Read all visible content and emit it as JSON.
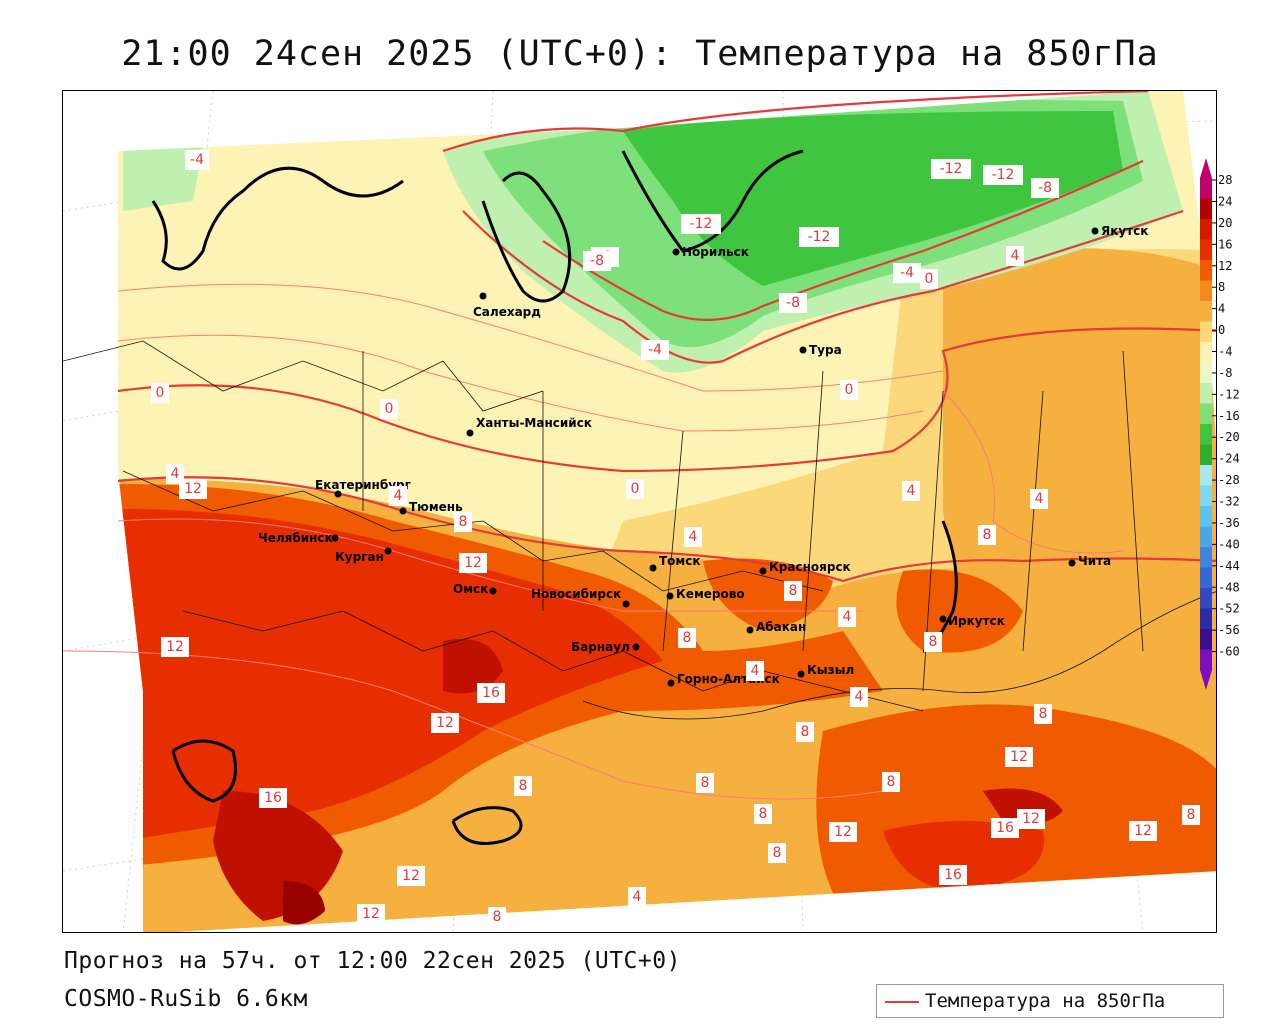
{
  "title": "21:00 24сен 2025 (UTC+0): Температура на 850гПа",
  "footer": {
    "forecast": "Прогноз на 57ч. от 12:00 22сен 2025 (UTC+0)",
    "model": "COSMO-RuSib 6.6км"
  },
  "legend": {
    "label": "Температура на 850гПа",
    "line_color": "#e53a3a"
  },
  "scale": {
    "ticks": [
      "28",
      "24",
      "20",
      "16",
      "12",
      "8",
      "4",
      "0",
      "-4",
      "-8",
      "-12",
      "-16",
      "-20",
      "-24",
      "-28",
      "-32",
      "-36",
      "-40",
      "-44",
      "-48",
      "-52",
      "-56",
      "-60"
    ],
    "colors": [
      "#c0006a",
      "#b20000",
      "#d41a00",
      "#e62e00",
      "#f05a00",
      "#f58a1a",
      "#f6b040",
      "#fbd97a",
      "#fdf3b5",
      "#e8f8c8",
      "#bff0b0",
      "#7ee07a",
      "#3fc53f",
      "#2fae2f",
      "#a6eaf0",
      "#7fd9ee",
      "#5fc2ee",
      "#4aa6e8",
      "#3c86e0",
      "#3468d6",
      "#3048c4",
      "#2b2aa8",
      "#3a1090",
      "#7a10c0"
    ]
  },
  "cities": [
    {
      "name": "Норильск"
    },
    {
      "name": "Якутск"
    },
    {
      "name": "Салехард"
    },
    {
      "name": "Тура"
    },
    {
      "name": "Ханты-Мансийск"
    },
    {
      "name": "Екатеринбург"
    },
    {
      "name": "Тюмень"
    },
    {
      "name": "Челябинск"
    },
    {
      "name": "Курган"
    },
    {
      "name": "Омск"
    },
    {
      "name": "Новосибирск"
    },
    {
      "name": "Томск"
    },
    {
      "name": "Красноярск"
    },
    {
      "name": "Кемерово"
    },
    {
      "name": "Барнаул"
    },
    {
      "name": "Абакан"
    },
    {
      "name": "Кызыл"
    },
    {
      "name": "Горно-Алтайск"
    },
    {
      "name": "Иркутск"
    },
    {
      "name": "Чита"
    }
  ],
  "contour_labels": [
    {
      "text": "-4"
    },
    {
      "text": "-12"
    },
    {
      "text": "-12"
    },
    {
      "text": "-8"
    },
    {
      "text": "-12"
    },
    {
      "text": "-8"
    },
    {
      "text": "-12"
    },
    {
      "text": "-8"
    },
    {
      "text": "-4"
    },
    {
      "text": "0"
    },
    {
      "text": "-8"
    },
    {
      "text": "-4"
    },
    {
      "text": "4"
    },
    {
      "text": "0"
    },
    {
      "text": "0"
    },
    {
      "text": "0"
    },
    {
      "text": "4"
    },
    {
      "text": "8"
    },
    {
      "text": "12"
    },
    {
      "text": "4"
    },
    {
      "text": "0"
    },
    {
      "text": "4"
    },
    {
      "text": "4"
    },
    {
      "text": "8"
    },
    {
      "text": "4"
    },
    {
      "text": "8"
    },
    {
      "text": "12"
    },
    {
      "text": "8"
    },
    {
      "text": "4"
    },
    {
      "text": "8"
    },
    {
      "text": "8"
    },
    {
      "text": "12"
    },
    {
      "text": "16"
    },
    {
      "text": "12"
    },
    {
      "text": "16"
    },
    {
      "text": "8"
    },
    {
      "text": "8"
    },
    {
      "text": "4"
    },
    {
      "text": "4"
    },
    {
      "text": "8"
    },
    {
      "text": "8"
    },
    {
      "text": "12"
    },
    {
      "text": "8"
    },
    {
      "text": "8"
    },
    {
      "text": "12"
    },
    {
      "text": "16"
    },
    {
      "text": "12"
    },
    {
      "text": "12"
    },
    {
      "text": "8"
    },
    {
      "text": "16"
    },
    {
      "text": "12"
    },
    {
      "text": "12"
    },
    {
      "text": "8"
    },
    {
      "text": "4"
    }
  ]
}
